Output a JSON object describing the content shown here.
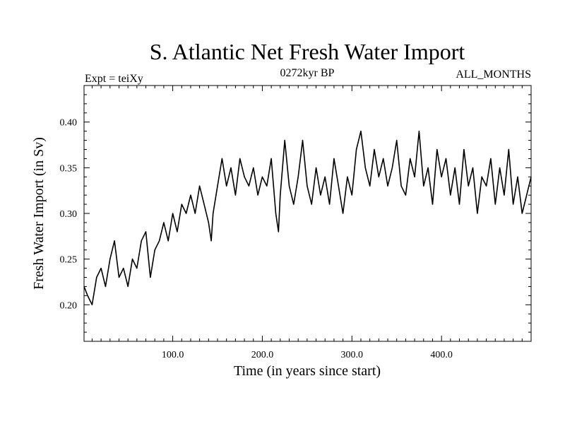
{
  "chart_data": {
    "type": "line",
    "title": "S. Atlantic Net Fresh Water Import",
    "subtitle_left": "Expt = teiXy",
    "subtitle_center": "0272kyr BP",
    "subtitle_right": "ALL_MONTHS",
    "xlabel": "Time (in years since start)",
    "ylabel": "Fresh Water Import (in Sv)",
    "xlim": [
      1,
      500
    ],
    "ylim": [
      0.16,
      0.44
    ],
    "xticks": [
      100,
      200,
      300,
      400
    ],
    "xtick_labels": [
      "100.0",
      "200.0",
      "300.0",
      "400.0"
    ],
    "yticks": [
      0.2,
      0.25,
      0.3,
      0.35,
      0.4
    ],
    "ytick_labels": [
      "0.20",
      "0.25",
      "0.30",
      "0.35",
      "0.40"
    ],
    "grid": false,
    "series": [
      {
        "color": "#000000",
        "x": [
          1,
          5,
          10,
          15,
          20,
          25,
          30,
          35,
          40,
          45,
          50,
          55,
          60,
          65,
          70,
          75,
          80,
          85,
          90,
          95,
          100,
          105,
          110,
          115,
          120,
          125,
          130,
          135,
          140,
          143,
          145,
          150,
          155,
          160,
          165,
          170,
          175,
          180,
          185,
          190,
          195,
          200,
          205,
          210,
          215,
          218,
          220,
          225,
          230,
          235,
          240,
          245,
          250,
          255,
          260,
          265,
          270,
          275,
          280,
          285,
          290,
          295,
          300,
          305,
          310,
          315,
          320,
          325,
          330,
          335,
          340,
          345,
          350,
          355,
          360,
          365,
          370,
          375,
          380,
          385,
          390,
          395,
          400,
          405,
          410,
          415,
          420,
          425,
          430,
          435,
          440,
          445,
          450,
          455,
          460,
          465,
          470,
          475,
          480,
          485,
          490,
          495,
          500
        ],
        "y": [
          0.22,
          0.21,
          0.2,
          0.23,
          0.24,
          0.22,
          0.25,
          0.27,
          0.23,
          0.24,
          0.22,
          0.25,
          0.24,
          0.27,
          0.28,
          0.23,
          0.26,
          0.27,
          0.29,
          0.27,
          0.3,
          0.28,
          0.31,
          0.3,
          0.32,
          0.3,
          0.33,
          0.31,
          0.29,
          0.27,
          0.3,
          0.33,
          0.36,
          0.33,
          0.35,
          0.32,
          0.36,
          0.34,
          0.33,
          0.35,
          0.32,
          0.34,
          0.33,
          0.36,
          0.3,
          0.28,
          0.32,
          0.38,
          0.33,
          0.31,
          0.34,
          0.38,
          0.33,
          0.31,
          0.35,
          0.32,
          0.34,
          0.31,
          0.36,
          0.33,
          0.3,
          0.34,
          0.32,
          0.37,
          0.39,
          0.35,
          0.33,
          0.37,
          0.34,
          0.36,
          0.33,
          0.35,
          0.38,
          0.33,
          0.32,
          0.36,
          0.34,
          0.39,
          0.33,
          0.35,
          0.31,
          0.37,
          0.34,
          0.36,
          0.32,
          0.35,
          0.31,
          0.37,
          0.33,
          0.35,
          0.3,
          0.34,
          0.33,
          0.36,
          0.31,
          0.35,
          0.32,
          0.37,
          0.31,
          0.34,
          0.3,
          0.32,
          0.34
        ]
      }
    ]
  }
}
